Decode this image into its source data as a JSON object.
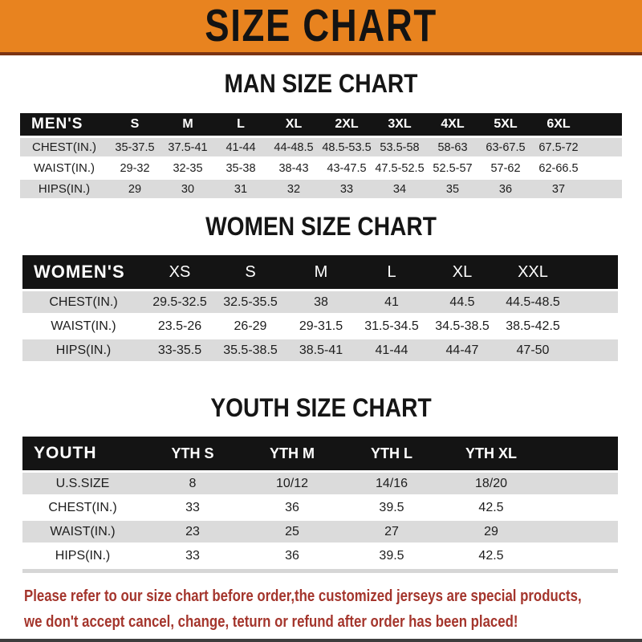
{
  "banner": {
    "title": "SIZE CHART"
  },
  "colors": {
    "accent_orange": "#E8831F",
    "banner_border": "#7B3413",
    "table_header_black": "#141414",
    "row_gray": "#DBDBDB",
    "footer_red": "#A4352C"
  },
  "sections": [
    {
      "heading": "MAN SIZE CHART",
      "header_label": "MEN'S",
      "columns": [
        "S",
        "M",
        "L",
        "XL",
        "2XL",
        "3XL",
        "4XL",
        "5XL",
        "6XL"
      ],
      "rows": [
        {
          "label": "CHEST(IN.)",
          "values": [
            "35-37.5",
            "37.5-41",
            "41-44",
            "44-48.5",
            "48.5-53.5",
            "53.5-58",
            "58-63",
            "63-67.5",
            "67.5-72"
          ]
        },
        {
          "label": "WAIST(IN.)",
          "values": [
            "29-32",
            "32-35",
            "35-38",
            "38-43",
            "43-47.5",
            "47.5-52.5",
            "52.5-57",
            "57-62",
            "62-66.5"
          ]
        },
        {
          "label": "HIPS(IN.)",
          "values": [
            "29",
            "30",
            "31",
            "32",
            "33",
            "34",
            "35",
            "36",
            "37"
          ]
        }
      ]
    },
    {
      "heading": "WOMEN SIZE CHART",
      "header_label": "WOMEN'S",
      "columns": [
        "XS",
        "S",
        "M",
        "L",
        "XL",
        "XXL"
      ],
      "rows": [
        {
          "label": "CHEST(IN.)",
          "values": [
            "29.5-32.5",
            "32.5-35.5",
            "38",
            "41",
            "44.5",
            "44.5-48.5"
          ]
        },
        {
          "label": "WAIST(IN.)",
          "values": [
            "23.5-26",
            "26-29",
            "29-31.5",
            "31.5-34.5",
            "34.5-38.5",
            "38.5-42.5"
          ]
        },
        {
          "label": "HIPS(IN.)",
          "values": [
            "33-35.5",
            "35.5-38.5",
            "38.5-41",
            "41-44",
            "44-47",
            "47-50"
          ]
        }
      ]
    },
    {
      "heading": "YOUTH SIZE CHART",
      "header_label": "YOUTH",
      "columns": [
        "YTH S",
        "YTH M",
        "YTH L",
        "YTH XL"
      ],
      "rows": [
        {
          "label": "U.S.SIZE",
          "values": [
            "8",
            "10/12",
            "14/16",
            "18/20"
          ]
        },
        {
          "label": "CHEST(IN.)",
          "values": [
            "33",
            "36",
            "39.5",
            "42.5"
          ]
        },
        {
          "label": "WAIST(IN.)",
          "values": [
            "23",
            "25",
            "27",
            "29"
          ]
        },
        {
          "label": "HIPS(IN.)",
          "values": [
            "33",
            "36",
            "39.5",
            "42.5"
          ]
        }
      ]
    }
  ],
  "footer": {
    "line1": "Please refer to our size chart before order,the customized jerseys are special products,",
    "line2": "we don't accept cancel, change, teturn or refund after order has been placed!"
  }
}
